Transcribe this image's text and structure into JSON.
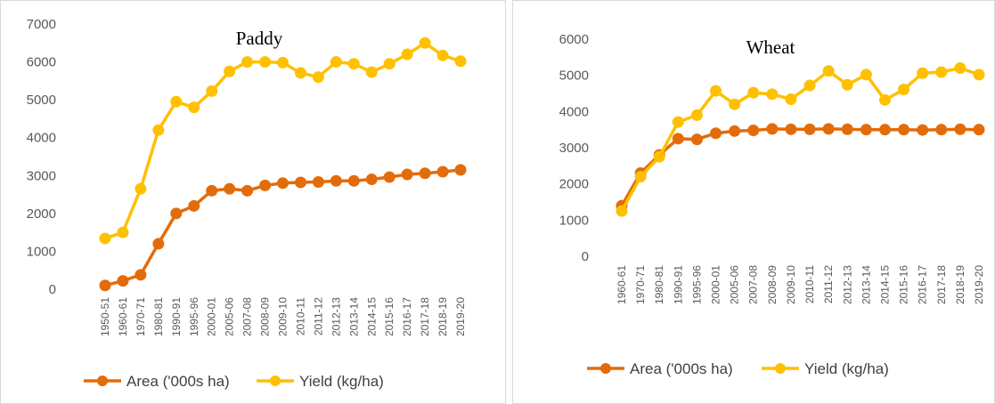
{
  "chart_data": [
    {
      "type": "line",
      "title": "Paddy",
      "xlabel": "",
      "ylabel": "",
      "ylim": [
        0,
        7000
      ],
      "yticks": [
        0,
        1000,
        2000,
        3000,
        4000,
        5000,
        6000,
        7000
      ],
      "categories": [
        "1950-51",
        "1960-61",
        "1970-71",
        "1980-81",
        "1990-91",
        "1995-96",
        "2000-01",
        "2005-06",
        "2007-08",
        "2008-09",
        "2009-10",
        "2010-11",
        "2011-12",
        "2012-13",
        "2013-14",
        "2014-15",
        "2015-16",
        "2016-17",
        "2017-18",
        "2018-19",
        "2019-20"
      ],
      "series": [
        {
          "name": "Area ('000s ha)",
          "color": "#E36C0A",
          "values": [
            100,
            220,
            380,
            1200,
            2000,
            2200,
            2600,
            2650,
            2600,
            2740,
            2800,
            2820,
            2830,
            2860,
            2860,
            2900,
            2960,
            3030,
            3060,
            3100,
            3150
          ]
        },
        {
          "name": "Yield (kg/ha)",
          "color": "#FFC000",
          "values": [
            1340,
            1500,
            2650,
            4200,
            4950,
            4800,
            5230,
            5750,
            6000,
            6000,
            5980,
            5710,
            5600,
            6000,
            5950,
            5730,
            5950,
            6200,
            6500,
            6170,
            6020
          ]
        }
      ],
      "grid": false,
      "legend": "bottom"
    },
    {
      "type": "line",
      "title": "Wheat",
      "xlabel": "",
      "ylabel": "",
      "ylim": [
        0,
        6000
      ],
      "yticks": [
        0,
        1000,
        2000,
        3000,
        4000,
        5000,
        6000
      ],
      "categories": [
        "1960-61",
        "1970-71",
        "1980-81",
        "1990-91",
        "1995-96",
        "2000-01",
        "2005-06",
        "2007-08",
        "2008-09",
        "2009-10",
        "2010-11",
        "2011-12",
        "2012-13",
        "2013-14",
        "2014-15",
        "2015-16",
        "2016-17",
        "2017-18",
        "2018-19",
        "2019-20"
      ],
      "series": [
        {
          "name": "Area ('000s ha)",
          "color": "#E36C0A",
          "values": [
            1400,
            2300,
            2800,
            3250,
            3230,
            3400,
            3460,
            3480,
            3520,
            3510,
            3510,
            3520,
            3510,
            3500,
            3500,
            3500,
            3490,
            3500,
            3510,
            3500
          ]
        },
        {
          "name": "Yield (kg/ha)",
          "color": "#FFC000",
          "values": [
            1250,
            2200,
            2750,
            3710,
            3900,
            4570,
            4200,
            4520,
            4480,
            4340,
            4720,
            5120,
            4740,
            5020,
            4320,
            4610,
            5060,
            5090,
            5200,
            5020
          ]
        }
      ],
      "grid": false,
      "legend": "bottom"
    }
  ]
}
